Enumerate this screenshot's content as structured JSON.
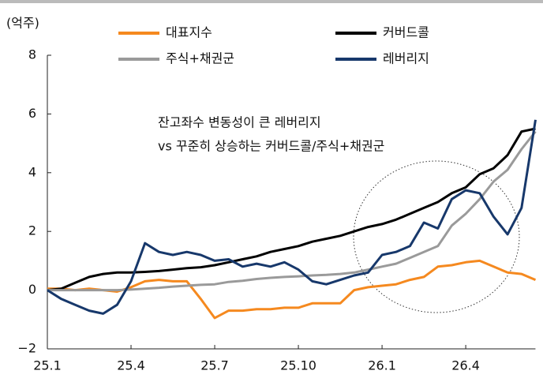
{
  "chart_data": {
    "type": "line",
    "y_axis_label": "(억주)",
    "annotation": [
      "잔고좌수 변동성이 큰 레버리지",
      "vs 꾸준히 상승하는 커버드콜/주식+채권군"
    ],
    "categories": [
      "25.1",
      null,
      null,
      null,
      null,
      null,
      "25.4",
      null,
      null,
      null,
      null,
      null,
      "25.7",
      null,
      null,
      null,
      null,
      null,
      "25.10",
      null,
      null,
      null,
      null,
      null,
      "26.1",
      null,
      null,
      null,
      null,
      null,
      "26.4",
      null,
      null,
      null,
      null,
      null
    ],
    "series": [
      {
        "name": "대표지수",
        "color": "#f5891f",
        "values": [
          0.05,
          0.05,
          0.0,
          0.05,
          0.0,
          -0.05,
          0.1,
          0.3,
          0.35,
          0.3,
          0.3,
          -0.3,
          -0.95,
          -0.7,
          -0.7,
          -0.65,
          -0.65,
          -0.6,
          -0.6,
          -0.45,
          -0.45,
          -0.45,
          0.0,
          0.1,
          0.15,
          0.2,
          0.35,
          0.45,
          0.8,
          0.85,
          0.95,
          1.0,
          0.8,
          0.6,
          0.55,
          0.35
        ]
      },
      {
        "name": "커버드콜",
        "color": "#000000",
        "values": [
          0,
          0.05,
          0.25,
          0.45,
          0.55,
          0.6,
          0.6,
          0.62,
          0.65,
          0.7,
          0.75,
          0.78,
          0.85,
          0.95,
          1.05,
          1.15,
          1.3,
          1.4,
          1.5,
          1.65,
          1.75,
          1.85,
          2.0,
          2.15,
          2.25,
          2.4,
          2.6,
          2.8,
          3.0,
          3.3,
          3.5,
          3.95,
          4.15,
          4.6,
          5.4,
          5.5
        ]
      },
      {
        "name": "주식+채권군",
        "color": "#9a9a9a",
        "values": [
          0,
          0,
          0,
          0,
          0,
          0,
          0.02,
          0.05,
          0.08,
          0.12,
          0.15,
          0.18,
          0.2,
          0.28,
          0.32,
          0.38,
          0.42,
          0.45,
          0.47,
          0.5,
          0.52,
          0.55,
          0.6,
          0.7,
          0.8,
          0.9,
          1.1,
          1.3,
          1.5,
          2.2,
          2.6,
          3.1,
          3.7,
          4.1,
          4.8,
          5.4
        ]
      },
      {
        "name": "레버리지",
        "color": "#17386b",
        "values": [
          0,
          -0.3,
          -0.5,
          -0.7,
          -0.8,
          -0.5,
          0.3,
          1.6,
          1.3,
          1.2,
          1.3,
          1.2,
          1.0,
          1.05,
          0.8,
          0.9,
          0.8,
          0.95,
          0.7,
          0.3,
          0.2,
          0.35,
          0.5,
          0.6,
          1.2,
          1.3,
          1.5,
          2.3,
          2.1,
          3.1,
          3.4,
          3.3,
          2.5,
          1.9,
          2.8,
          5.8
        ]
      }
    ],
    "ylim": [
      -2,
      8
    ],
    "yticks": [
      {
        "value": -2,
        "label": "−2"
      },
      0,
      2,
      4,
      6,
      8
    ]
  }
}
